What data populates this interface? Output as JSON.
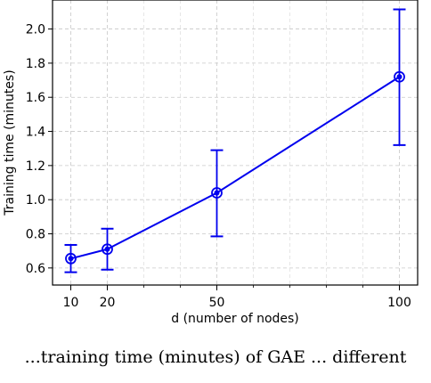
{
  "chart_data": {
    "type": "line",
    "title": "",
    "xlabel": "d (number of nodes)",
    "ylabel": "Training time (minutes)",
    "x": [
      10,
      20,
      50,
      100
    ],
    "xticks": [
      10,
      20,
      50,
      100
    ],
    "xlim": [
      5,
      105
    ],
    "ylim": [
      0.5,
      2.17
    ],
    "yticks": [
      0.6,
      0.8,
      1.0,
      1.2,
      1.4,
      1.6,
      1.8,
      2.0
    ],
    "ytick_labels": [
      "0.6",
      "0.8",
      "1.0",
      "1.2",
      "1.4",
      "1.6",
      "1.8",
      "2.0"
    ],
    "grid": true,
    "series": [
      {
        "values": [
          0.655,
          0.71,
          1.04,
          1.72
        ],
        "err_low": [
          0.575,
          0.59,
          0.785,
          1.32
        ],
        "err_high": [
          0.735,
          0.83,
          1.29,
          2.115
        ],
        "color": "#0000ee"
      }
    ]
  },
  "caption": "...training time (minutes) of GAE ... different"
}
